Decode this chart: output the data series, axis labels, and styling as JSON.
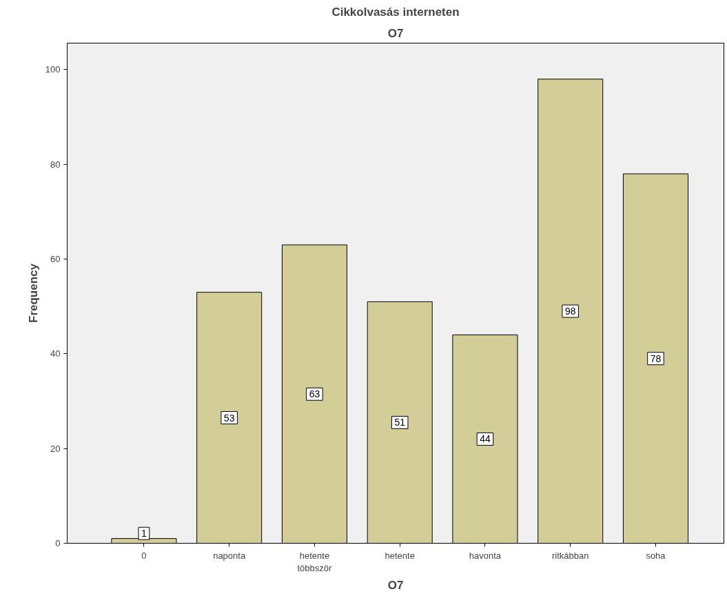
{
  "chart_data": {
    "type": "bar",
    "title": "Cikkolvasás interneten",
    "subtitle": "O7",
    "xlabel": "O7",
    "ylabel": "Frequency",
    "categories": [
      "0",
      "naponta",
      "hetente\ntöbbször",
      "hetente",
      "havonta",
      "ritkábban",
      "soha"
    ],
    "values": [
      1,
      53,
      63,
      51,
      44,
      98,
      78
    ],
    "color": "#d3ce97",
    "ylim": [
      0,
      105.6
    ],
    "yticks": [
      0,
      20,
      40,
      60,
      80,
      100
    ],
    "grid": false,
    "data_labels": true
  }
}
